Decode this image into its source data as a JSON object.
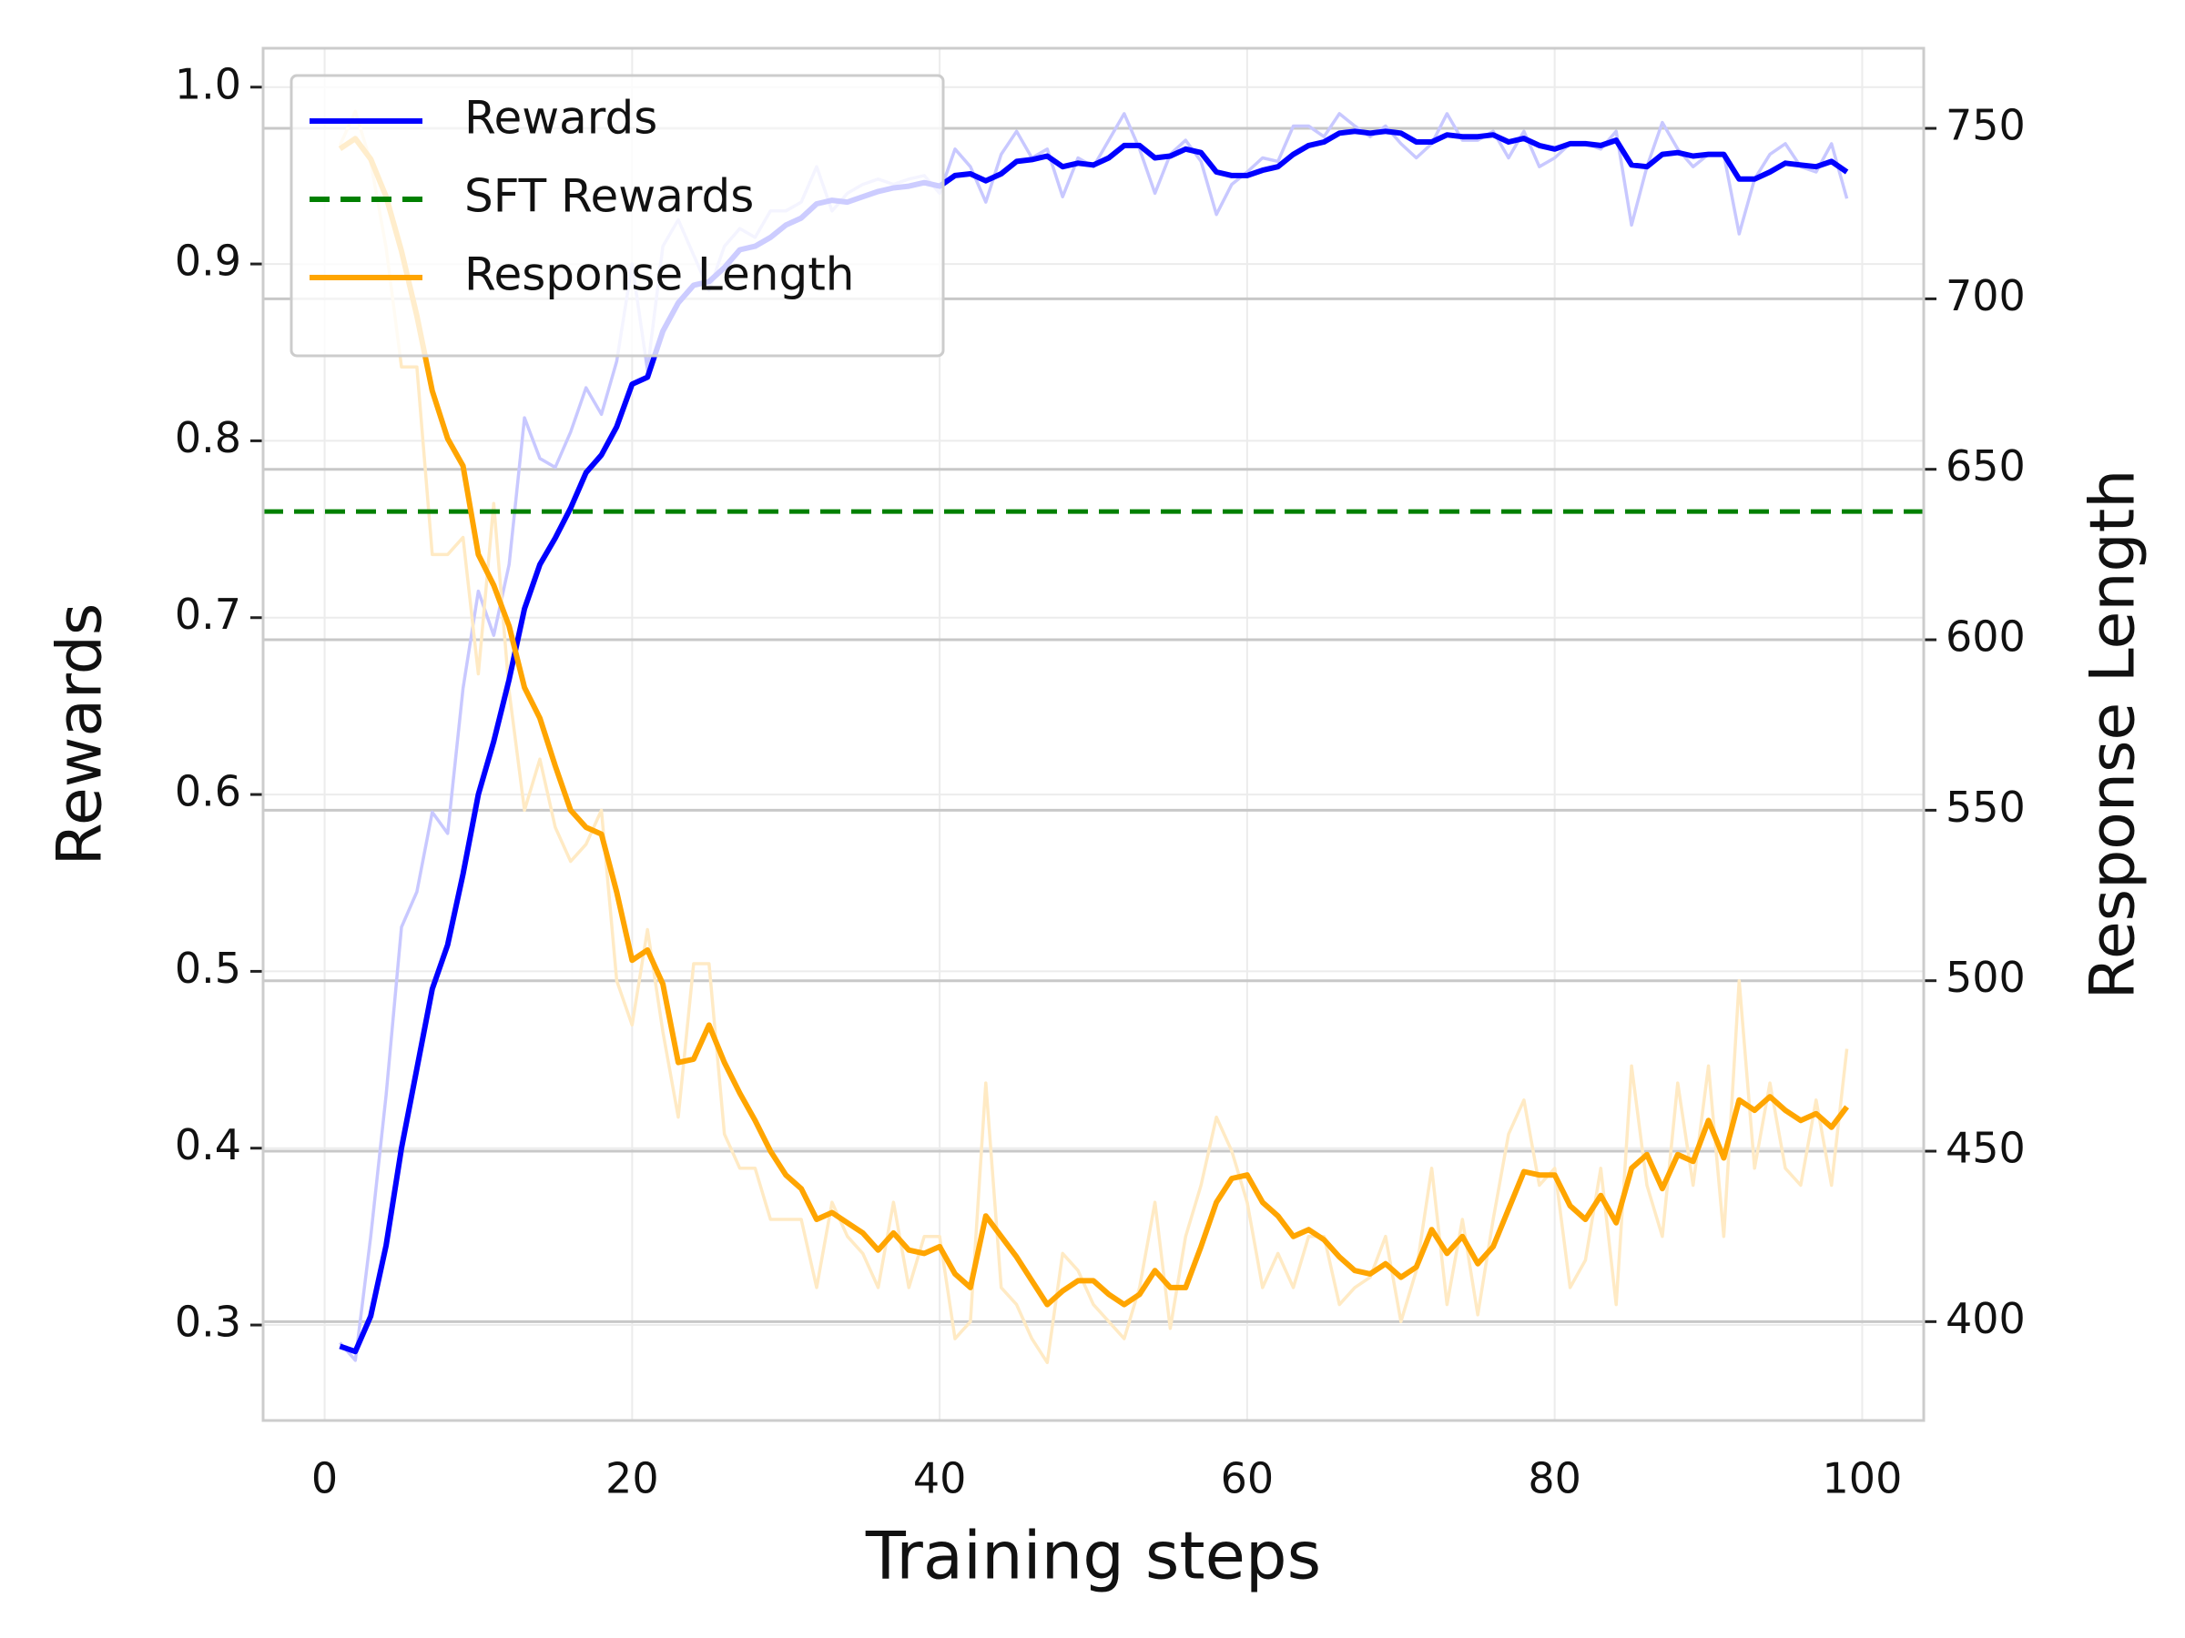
{
  "chart_data": {
    "type": "line",
    "xlabel": "Training steps",
    "ylabel": "Rewards",
    "y2label": "Response Length",
    "x": [
      1,
      2,
      3,
      4,
      5,
      6,
      7,
      8,
      9,
      10,
      11,
      12,
      13,
      14,
      15,
      16,
      17,
      18,
      19,
      20,
      21,
      22,
      23,
      24,
      25,
      26,
      27,
      28,
      29,
      30,
      31,
      32,
      33,
      34,
      35,
      36,
      37,
      38,
      39,
      40,
      41,
      42,
      43,
      44,
      45,
      46,
      47,
      48,
      49,
      50,
      51,
      52,
      53,
      54,
      55,
      56,
      57,
      58,
      59,
      60,
      61,
      62,
      63,
      64,
      65,
      66,
      67,
      68,
      69,
      70,
      71,
      72,
      73,
      74,
      75,
      76,
      77,
      78,
      79,
      80,
      81,
      82,
      83,
      84,
      85,
      86,
      87,
      88,
      89,
      90,
      91,
      92,
      93,
      94,
      95,
      96,
      97,
      98,
      99
    ],
    "xlim": [
      -4,
      104
    ],
    "xticks": [
      0,
      20,
      40,
      60,
      80,
      100
    ],
    "ylim": [
      0.246,
      1.022
    ],
    "yticks": [
      0.3,
      0.4,
      0.5,
      0.6,
      0.7,
      0.8,
      0.9,
      {
        "value": 1,
        "label": "1.0"
      }
    ],
    "y2lim": [
      371,
      773.5
    ],
    "y2ticks": [
      400,
      450,
      500,
      550,
      600,
      650,
      700,
      750
    ],
    "grid": true,
    "y2grid": true,
    "legend": "upper left",
    "series": [
      {
        "color": "#c8c8ff",
        "axis": "y",
        "values": [
          0.29,
          0.28,
          0.35,
          0.43,
          0.525,
          0.545,
          0.59,
          0.578,
          0.66,
          0.715,
          0.69,
          0.73,
          0.813,
          0.79,
          0.785,
          0.805,
          0.83,
          0.815,
          0.845,
          0.9,
          0.84,
          0.91,
          0.925,
          0.905,
          0.885,
          0.91,
          0.92,
          0.915,
          0.93,
          0.93,
          0.935,
          0.955,
          0.93,
          0.94,
          0.945,
          0.948,
          0.945,
          0.948,
          0.95,
          0.94,
          0.965,
          0.955,
          0.935,
          0.962,
          0.975,
          0.96,
          0.965,
          0.938,
          0.96,
          0.955,
          0.97,
          0.985,
          0.965,
          0.94,
          0.962,
          0.97,
          0.958,
          0.928,
          0.945,
          0.952,
          0.96,
          0.958,
          0.978,
          0.978,
          0.972,
          0.985,
          0.978,
          0.972,
          0.978,
          0.968,
          0.96,
          0.968,
          0.985,
          0.97,
          0.97,
          0.975,
          0.96,
          0.975,
          0.955,
          0.96,
          0.968,
          0.968,
          0.965,
          0.975,
          0.922,
          0.955,
          0.98,
          0.965,
          0.955,
          0.962,
          0.962,
          0.917,
          0.948,
          0.962,
          0.968,
          0.955,
          0.952,
          0.968,
          0.937
        ]
      },
      {
        "color": "#ffeac4",
        "axis": "y2",
        "values": [
          745,
          755,
          740,
          715,
          680,
          680,
          625,
          625,
          630,
          590,
          640,
          585,
          550,
          565,
          545,
          535,
          540,
          550,
          500,
          487,
          515,
          485,
          460,
          505,
          505,
          455,
          445,
          445,
          430,
          430,
          430,
          410,
          435,
          425,
          420,
          410,
          435,
          410,
          425,
          425,
          395,
          400,
          470,
          410,
          405,
          395,
          388,
          420,
          415,
          405,
          400,
          395,
          410,
          435,
          398,
          425,
          440,
          460,
          450,
          435,
          410,
          420,
          410,
          425,
          425,
          405,
          410,
          413,
          425,
          400,
          415,
          445,
          405,
          430,
          402,
          430,
          455,
          465,
          440,
          445,
          410,
          418,
          445,
          405,
          475,
          440,
          425,
          470,
          440,
          475,
          425,
          500,
          445,
          470,
          445,
          440,
          465,
          440,
          480
        ]
      },
      {
        "name": "Rewards",
        "color": "#0000ff",
        "axis": "y",
        "values": [
          0.288,
          0.285,
          0.305,
          0.345,
          0.4,
          0.445,
          0.49,
          0.515,
          0.555,
          0.6,
          0.63,
          0.665,
          0.705,
          0.73,
          0.745,
          0.762,
          0.782,
          0.792,
          0.808,
          0.832,
          0.836,
          0.862,
          0.878,
          0.888,
          0.89,
          0.898,
          0.908,
          0.91,
          0.915,
          0.922,
          0.926,
          0.934,
          0.936,
          0.935,
          0.938,
          0.941,
          0.943,
          0.944,
          0.946,
          0.944,
          0.95,
          0.951,
          0.947,
          0.951,
          0.958,
          0.959,
          0.961,
          0.955,
          0.957,
          0.956,
          0.96,
          0.967,
          0.967,
          0.96,
          0.961,
          0.965,
          0.963,
          0.952,
          0.95,
          0.95,
          0.953,
          0.955,
          0.962,
          0.967,
          0.969,
          0.974,
          0.975,
          0.974,
          0.975,
          0.974,
          0.969,
          0.969,
          0.973,
          0.972,
          0.972,
          0.973,
          0.969,
          0.971,
          0.967,
          0.965,
          0.968,
          0.968,
          0.967,
          0.97,
          0.956,
          0.955,
          0.962,
          0.963,
          0.961,
          0.962,
          0.962,
          0.948,
          0.948,
          0.952,
          0.957,
          0.956,
          0.955,
          0.958,
          0.952
        ]
      },
      {
        "name": "SFT Rewards",
        "color": "#008000",
        "axis": "y",
        "style": "dashed",
        "value": 0.76
      },
      {
        "name": "Response Length",
        "color": "#ffa500",
        "axis": "y2",
        "values": [
          744,
          747,
          741,
          730,
          714,
          695,
          673,
          659,
          651,
          625,
          616,
          604,
          586,
          577,
          563,
          550,
          545,
          543,
          526,
          506,
          509,
          499,
          476,
          477,
          487,
          476,
          467,
          459,
          450,
          443,
          439,
          430,
          432,
          429,
          426,
          421,
          426,
          421,
          420,
          422,
          414,
          410,
          431,
          425,
          419,
          412,
          405,
          409,
          412,
          412,
          408,
          405,
          408,
          415,
          410,
          410,
          422,
          435,
          442,
          443,
          435,
          431,
          425,
          427,
          424,
          419,
          415,
          414,
          417,
          413,
          416,
          427,
          420,
          425,
          417,
          422,
          433,
          444,
          443,
          443,
          434,
          430,
          437,
          429,
          445,
          449,
          439,
          449,
          447,
          459,
          448,
          465,
          462,
          466,
          462,
          459,
          461,
          457,
          463
        ]
      }
    ]
  }
}
